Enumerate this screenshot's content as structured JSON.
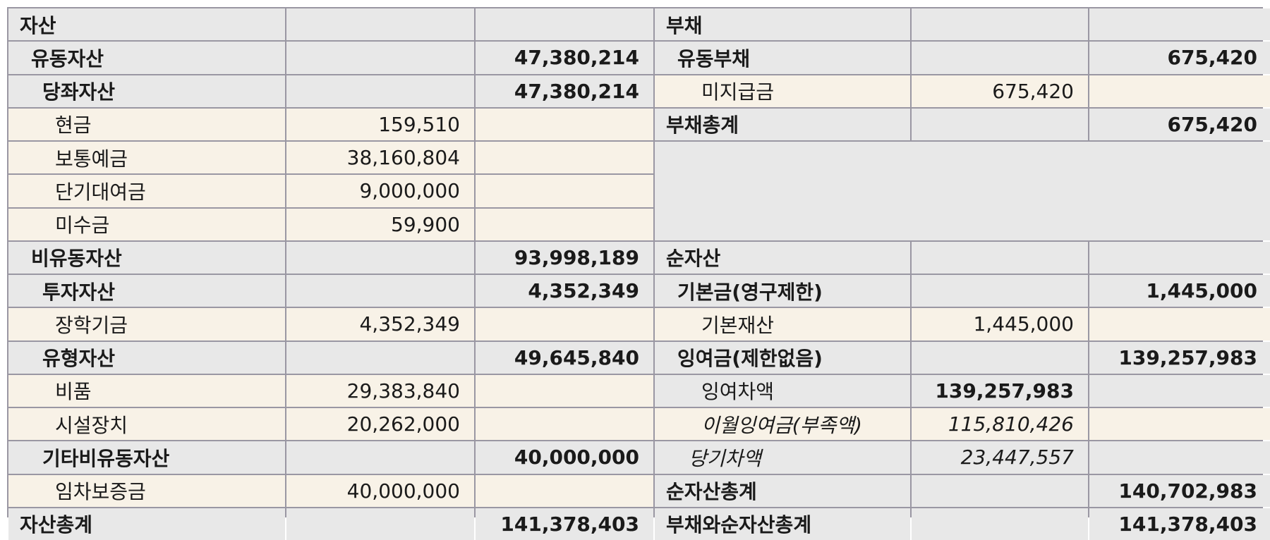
{
  "assets": {
    "header": "자산",
    "current_assets": {
      "label": "유동자산",
      "total": "47,380,214"
    },
    "quick_assets": {
      "label": "당좌자산",
      "total": "47,380,214"
    },
    "quick_items": [
      {
        "label": "현금",
        "value": "159,510"
      },
      {
        "label": "보통예금",
        "value": "38,160,804"
      },
      {
        "label": "단기대여금",
        "value": "9,000,000"
      },
      {
        "label": "미수금",
        "value": "59,900"
      }
    ],
    "noncurrent_assets": {
      "label": "비유동자산",
      "total": "93,998,189"
    },
    "investment_assets": {
      "label": "투자자산",
      "total": "4,352,349"
    },
    "investment_items": [
      {
        "label": "장학기금",
        "value": "4,352,349"
      }
    ],
    "tangible_assets": {
      "label": "유형자산",
      "total": "49,645,840"
    },
    "tangible_items": [
      {
        "label": "비품",
        "value": "29,383,840"
      },
      {
        "label": "시설장치",
        "value": "20,262,000"
      }
    ],
    "other_noncurrent": {
      "label": "기타비유동자산",
      "total": "40,000,000"
    },
    "other_items": [
      {
        "label": "임차보증금",
        "value": "40,000,000"
      }
    ],
    "total": {
      "label": "자산총계",
      "value": "141,378,403"
    }
  },
  "liabilities": {
    "header": "부채",
    "current": {
      "label": "유동부채",
      "total": "675,420"
    },
    "items": [
      {
        "label": "미지급금",
        "value": "675,420"
      }
    ],
    "total": {
      "label": "부채총계",
      "value": "675,420"
    }
  },
  "net_assets": {
    "header": "순자산",
    "basic": {
      "label": "기본금(영구제한)",
      "total": "1,445,000"
    },
    "basic_items": [
      {
        "label": "기본재산",
        "value": "1,445,000"
      }
    ],
    "surplus": {
      "label": "잉여금(제한없음)",
      "total": "139,257,983"
    },
    "surplus_diff": {
      "label": "잉여차액",
      "value": "139,257,983"
    },
    "surplus_sub": [
      {
        "label": "이월잉여금(부족액)",
        "value": "115,810,426"
      },
      {
        "label": "당기차액",
        "value": "23,447,557"
      }
    ],
    "total": {
      "label": "순자산총계",
      "value": "140,702,983"
    },
    "grand_total": {
      "label": "부채와순자산총계",
      "value": "141,378,403"
    }
  }
}
